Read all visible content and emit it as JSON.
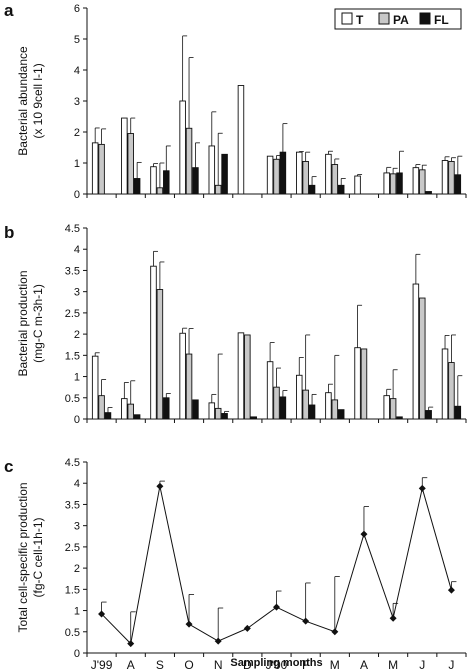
{
  "chart_data": [
    {
      "panel": "a",
      "type": "bar",
      "ylabel_line1": "Bacterial abundance",
      "ylabel_line2": "(x 10 9cell l-1)",
      "ylim": [
        0,
        6
      ],
      "yticks": [
        "0",
        "1",
        "2",
        "3",
        "4",
        "5",
        "6"
      ],
      "categories": [
        "J'99",
        "A",
        "S",
        "O",
        "N",
        "D",
        "J'00",
        "F",
        "M",
        "A",
        "M",
        "J",
        "J"
      ],
      "legend": {
        "position": "top-right",
        "entries": [
          "T",
          "PA",
          "FL"
        ]
      },
      "series": [
        {
          "name": "T",
          "values": [
            1.65,
            2.45,
            0.88,
            3.0,
            1.55,
            3.5,
            1.22,
            1.35,
            1.28,
            0.58,
            0.68,
            0.85,
            1.08
          ],
          "err": [
            0.48,
            0,
            0.1,
            2.1,
            1.1,
            0,
            0,
            0.02,
            0.1,
            0.05,
            0.18,
            0.1,
            0.12
          ]
        },
        {
          "name": "PA",
          "values": [
            1.6,
            1.95,
            0.2,
            2.12,
            0.28,
            null,
            1.12,
            1.05,
            0.95,
            null,
            0.65,
            0.78,
            1.05
          ],
          "err": [
            0.5,
            0.5,
            0.8,
            2.28,
            1.68,
            null,
            0.12,
            0.3,
            0.18,
            null,
            0.18,
            0.15,
            0.12
          ]
        },
        {
          "name": "FL",
          "values": [
            null,
            0.5,
            0.75,
            0.85,
            1.28,
            null,
            1.35,
            0.28,
            0.28,
            null,
            0.68,
            0.08,
            0.62
          ],
          "err": [
            null,
            0.52,
            0.8,
            0.8,
            0,
            null,
            0.92,
            0.28,
            0.22,
            null,
            0.7,
            0,
            0.6
          ]
        }
      ]
    },
    {
      "panel": "b",
      "type": "bar",
      "ylabel_line1": "Bacterial production",
      "ylabel_line2": "(mg-C m-3h-1)",
      "ylim": [
        0,
        4.5
      ],
      "yticks": [
        "0",
        "0.5",
        "1",
        "1.5",
        "2",
        "2.5",
        "3",
        "3.5",
        "4",
        "4.5"
      ],
      "categories": [
        "J'99",
        "A",
        "S",
        "O",
        "N",
        "D",
        "J'00",
        "F",
        "M",
        "A",
        "M",
        "J",
        "J"
      ],
      "series": [
        {
          "name": "T",
          "values": [
            1.48,
            0.48,
            3.6,
            2.02,
            0.38,
            2.03,
            1.35,
            1.03,
            0.62,
            1.68,
            0.55,
            3.18,
            1.65
          ],
          "err": [
            0.08,
            0.38,
            0.35,
            0.12,
            0.2,
            0,
            0.45,
            0.42,
            0.2,
            1.0,
            0.15,
            0.7,
            0.32
          ]
        },
        {
          "name": "PA",
          "values": [
            0.55,
            0.35,
            3.05,
            1.53,
            0.25,
            1.98,
            0.75,
            0.68,
            0.45,
            1.65,
            0.48,
            2.85,
            1.33
          ],
          "err": [
            0.38,
            0.55,
            0.65,
            0.6,
            1.28,
            0,
            0.45,
            1.3,
            1.05,
            0,
            0.68,
            0,
            0.65
          ]
        },
        {
          "name": "FL",
          "values": [
            0.15,
            0.1,
            0.5,
            0.45,
            0.13,
            0.05,
            0.52,
            0.33,
            0.22,
            null,
            0.05,
            0.2,
            0.3
          ],
          "err": [
            0.12,
            0,
            0.1,
            0,
            0.05,
            0,
            0.15,
            0.25,
            0,
            null,
            0,
            0.08,
            0.72
          ]
        }
      ]
    },
    {
      "panel": "c",
      "type": "line",
      "ylabel_line1": "Total cell-specific production",
      "ylabel_line2": "(fg-C cell-1h-1)",
      "ylim": [
        0,
        4.5
      ],
      "yticks": [
        "0",
        "0.5",
        "1",
        "1.5",
        "2",
        "2.5",
        "3",
        "3.5",
        "4",
        "4.5"
      ],
      "categories": [
        "J'99",
        "A",
        "S",
        "O",
        "N",
        "D",
        "J'00",
        "F",
        "M",
        "A",
        "M",
        "J",
        "J"
      ],
      "xlabel": "Sampling months",
      "values": [
        0.92,
        0.22,
        3.93,
        0.68,
        0.28,
        0.58,
        1.08,
        0.75,
        0.5,
        2.8,
        0.82,
        3.88,
        1.48
      ],
      "err": [
        0.28,
        0.75,
        0.12,
        0.7,
        0.78,
        0,
        0.38,
        0.9,
        1.3,
        0.65,
        0.35,
        0.25,
        0.2
      ]
    }
  ]
}
